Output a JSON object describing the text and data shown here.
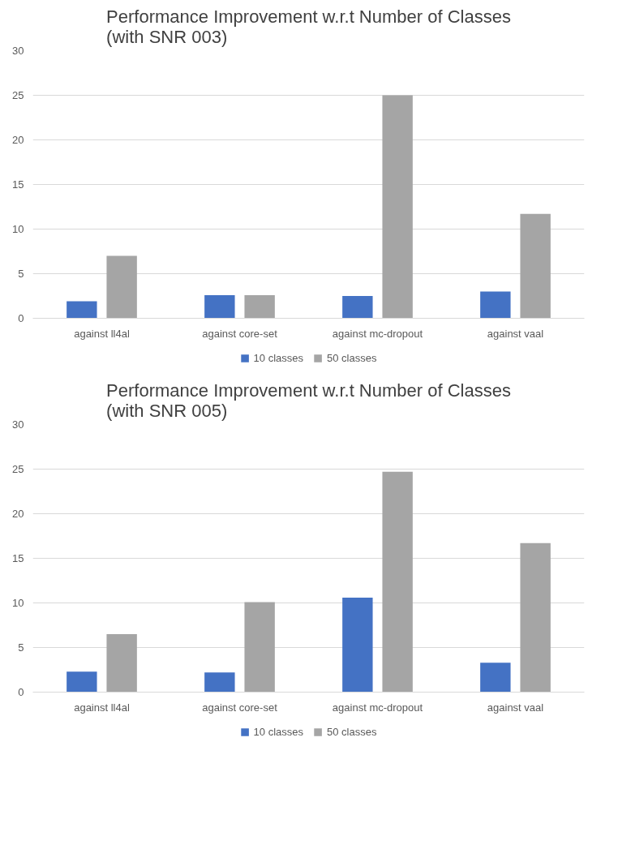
{
  "chart_data": [
    {
      "type": "bar",
      "title": "Performance Improvement w.r.t Number of Classes (with SNR 003)",
      "categories": [
        "against ll4al",
        "against core-set",
        "against mc-dropout",
        "against vaal"
      ],
      "series": [
        {
          "name": "10 classes",
          "color": "#4472c4",
          "values": [
            1.9,
            2.6,
            2.5,
            3.0
          ]
        },
        {
          "name": "50 classes",
          "color": "#a5a5a5",
          "values": [
            7.0,
            2.6,
            25.0,
            11.7
          ]
        }
      ],
      "ylim": [
        0,
        30
      ],
      "yticks": [
        0,
        5,
        10,
        15,
        20,
        25,
        30
      ],
      "grid": "y",
      "legend": "bottom"
    },
    {
      "type": "bar",
      "title": "Performance Improvement w.r.t Number of Classes (with SNR 005)",
      "categories": [
        "against ll4al",
        "against core-set",
        "against mc-dropout",
        "against vaal"
      ],
      "series": [
        {
          "name": "10 classes",
          "color": "#4472c4",
          "values": [
            2.3,
            2.2,
            10.6,
            3.3
          ]
        },
        {
          "name": "50 classes",
          "color": "#a5a5a5",
          "values": [
            6.5,
            10.1,
            24.7,
            16.7
          ]
        }
      ],
      "ylim": [
        0,
        30
      ],
      "yticks": [
        0,
        5,
        10,
        15,
        20,
        25,
        30
      ],
      "grid": "y",
      "legend": "bottom"
    }
  ]
}
